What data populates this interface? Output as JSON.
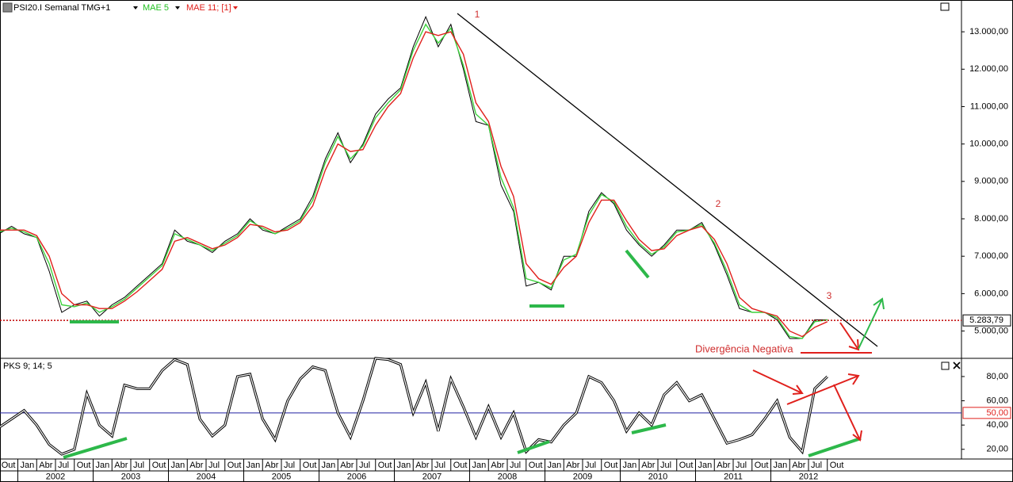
{
  "chart_data": [
    {
      "type": "line",
      "title": "PSI20.I Semanal TMG+1",
      "x": [
        "2001-10",
        "2001-12",
        "2002-02",
        "2002-04",
        "2002-06",
        "2002-08",
        "2002-10",
        "2002-12",
        "2003-02",
        "2003-04",
        "2003-06",
        "2003-08",
        "2003-10",
        "2003-12",
        "2004-02",
        "2004-04",
        "2004-06",
        "2004-08",
        "2004-10",
        "2004-12",
        "2005-02",
        "2005-04",
        "2005-06",
        "2005-08",
        "2005-10",
        "2005-12",
        "2006-02",
        "2006-04",
        "2006-06",
        "2006-08",
        "2006-10",
        "2006-12",
        "2007-02",
        "2007-04",
        "2007-06",
        "2007-08",
        "2007-10",
        "2007-12",
        "2008-02",
        "2008-04",
        "2008-06",
        "2008-08",
        "2008-10",
        "2008-12",
        "2009-02",
        "2009-04",
        "2009-06",
        "2009-08",
        "2009-10",
        "2009-12",
        "2010-02",
        "2010-04",
        "2010-06",
        "2010-08",
        "2010-10",
        "2010-12",
        "2011-02",
        "2011-04",
        "2011-06",
        "2011-08",
        "2011-10",
        "2011-12",
        "2012-02",
        "2012-04",
        "2012-06",
        "2012-08",
        "2012-10"
      ],
      "series": [
        {
          "name": "PSI20.I Semanal TMG+1",
          "color": "#000000",
          "values": [
            7600,
            7800,
            7600,
            7500,
            6600,
            5500,
            5700,
            5800,
            5400,
            5700,
            5900,
            6200,
            6500,
            6800,
            7700,
            7400,
            7300,
            7100,
            7400,
            7600,
            8000,
            7700,
            7600,
            7800,
            8000,
            8600,
            9600,
            10300,
            9500,
            10000,
            10800,
            11200,
            11500,
            12600,
            13400,
            12600,
            13200,
            12000,
            10600,
            10500,
            8900,
            8200,
            6200,
            6300,
            6100,
            7000,
            7000,
            8200,
            8700,
            8400,
            7700,
            7300,
            7000,
            7300,
            7700,
            7700,
            7900,
            7300,
            6500,
            5600,
            5500,
            5500,
            5300,
            4800,
            4800,
            5300,
            5300
          ]
        },
        {
          "name": "MAE 5",
          "color": "#3cd23c",
          "values": [
            7650,
            7750,
            7650,
            7500,
            6800,
            5700,
            5650,
            5750,
            5500,
            5650,
            5850,
            6150,
            6450,
            6750,
            7600,
            7450,
            7300,
            7150,
            7350,
            7550,
            7950,
            7750,
            7600,
            7750,
            7950,
            8500,
            9500,
            10200,
            9600,
            9950,
            10700,
            11100,
            11450,
            12500,
            13200,
            12700,
            13100,
            12100,
            10800,
            10500,
            9100,
            8300,
            6400,
            6300,
            6150,
            6900,
            7050,
            8100,
            8650,
            8450,
            7800,
            7350,
            7050,
            7250,
            7650,
            7700,
            7850,
            7350,
            6600,
            5700,
            5500,
            5500,
            5350,
            4850,
            4800,
            5250,
            5300
          ]
        },
        {
          "name": "MAE 11; [1]",
          "color": "#e0201c",
          "values": [
            7700,
            7700,
            7700,
            7550,
            7000,
            6000,
            5700,
            5700,
            5600,
            5600,
            5800,
            6050,
            6350,
            6650,
            7400,
            7500,
            7350,
            7200,
            7300,
            7500,
            7850,
            7800,
            7650,
            7700,
            7900,
            8350,
            9300,
            10000,
            9800,
            9850,
            10500,
            11000,
            11350,
            12300,
            13000,
            12900,
            13000,
            12400,
            11100,
            10600,
            9400,
            8600,
            6800,
            6400,
            6250,
            6700,
            7000,
            7900,
            8500,
            8500,
            7950,
            7450,
            7150,
            7200,
            7550,
            7700,
            7800,
            7450,
            6800,
            5900,
            5600,
            5500,
            5400,
            5000,
            4850,
            5100,
            5250
          ]
        }
      ],
      "ylim": [
        4270,
        13850
      ],
      "yticks": [
        {
          "value": 5000,
          "label": "5.000,00"
        },
        {
          "value": 6000,
          "label": "6.000,00"
        },
        {
          "value": 7000,
          "label": "7.000,00"
        },
        {
          "value": 8000,
          "label": "8.000,00"
        },
        {
          "value": 9000,
          "label": "9.000,00"
        },
        {
          "value": 10000,
          "label": "10.000,00"
        },
        {
          "value": 11000,
          "label": "11.000,00"
        },
        {
          "value": 12000,
          "label": "12.000,00"
        },
        {
          "value": 13000,
          "label": "13.000,00"
        }
      ],
      "last_price": {
        "value": 5283.79,
        "label": "5.283,79"
      },
      "annotations": [
        "1",
        "2",
        "3",
        "Divergência Negativa"
      ],
      "month_labels": [
        "Out",
        "Jan",
        "Abr",
        "Jul",
        "Out",
        "Jan",
        "Abr",
        "Jul",
        "Out",
        "Jan",
        "Abr",
        "Jul",
        "Out",
        "Jan",
        "Abr",
        "Jul",
        "Out",
        "Jan",
        "Abr",
        "Jul",
        "Out",
        "Jan",
        "Abr",
        "Jul",
        "Out",
        "Jan",
        "Abr",
        "Jul",
        "Out",
        "Jan",
        "Abr",
        "Jul",
        "Out",
        "Jan",
        "Abr",
        "Jul",
        "Out",
        "Jan",
        "Abr",
        "Jul",
        "Out",
        "Jan",
        "Abr",
        "Jul",
        "Out"
      ],
      "year_labels": [
        "2002",
        "2003",
        "2004",
        "2005",
        "2006",
        "2007",
        "2008",
        "2009",
        "2010",
        "2011",
        "2012"
      ]
    },
    {
      "type": "line",
      "title": "PKS 9; 14; 5",
      "x": [
        "2001-10",
        "2001-12",
        "2002-02",
        "2002-04",
        "2002-06",
        "2002-08",
        "2002-10",
        "2002-12",
        "2003-02",
        "2003-04",
        "2003-06",
        "2003-08",
        "2003-10",
        "2003-12",
        "2004-02",
        "2004-04",
        "2004-06",
        "2004-08",
        "2004-10",
        "2004-12",
        "2005-02",
        "2005-04",
        "2005-06",
        "2005-08",
        "2005-10",
        "2005-12",
        "2006-02",
        "2006-04",
        "2006-06",
        "2006-08",
        "2006-10",
        "2006-12",
        "2007-02",
        "2007-04",
        "2007-06",
        "2007-08",
        "2007-10",
        "2007-12",
        "2008-02",
        "2008-04",
        "2008-06",
        "2008-08",
        "2008-10",
        "2008-12",
        "2009-02",
        "2009-04",
        "2009-06",
        "2009-08",
        "2009-10",
        "2009-12",
        "2010-02",
        "2010-04",
        "2010-06",
        "2010-08",
        "2010-10",
        "2010-12",
        "2011-02",
        "2011-04",
        "2011-06",
        "2011-08",
        "2011-10",
        "2011-12",
        "2012-02",
        "2012-04",
        "2012-06",
        "2012-08",
        "2012-10"
      ],
      "series": [
        {
          "name": "PKS 9; 14; 5",
          "color": "#000000",
          "values": [
            38,
            45,
            52,
            40,
            24,
            16,
            20,
            66,
            40,
            31,
            73,
            70,
            70,
            85,
            94,
            90,
            45,
            31,
            40,
            80,
            82,
            45,
            28,
            60,
            78,
            88,
            85,
            50,
            30,
            60,
            95,
            94,
            90,
            50,
            75,
            35,
            78,
            55,
            30,
            55,
            30,
            50,
            18,
            28,
            26,
            40,
            50,
            80,
            75,
            60,
            35,
            50,
            40,
            65,
            75,
            60,
            65,
            45,
            25,
            28,
            32,
            45,
            60,
            30,
            18,
            70,
            80
          ]
        }
      ],
      "ylim": [
        12,
        95
      ],
      "yticks": [
        {
          "value": 20,
          "label": "20,00"
        },
        {
          "value": 40,
          "label": "40,00"
        },
        {
          "value": 60,
          "label": "60,00"
        },
        {
          "value": 80,
          "label": "80,00"
        }
      ],
      "reference": {
        "value": 50,
        "label": "50,00"
      }
    }
  ]
}
